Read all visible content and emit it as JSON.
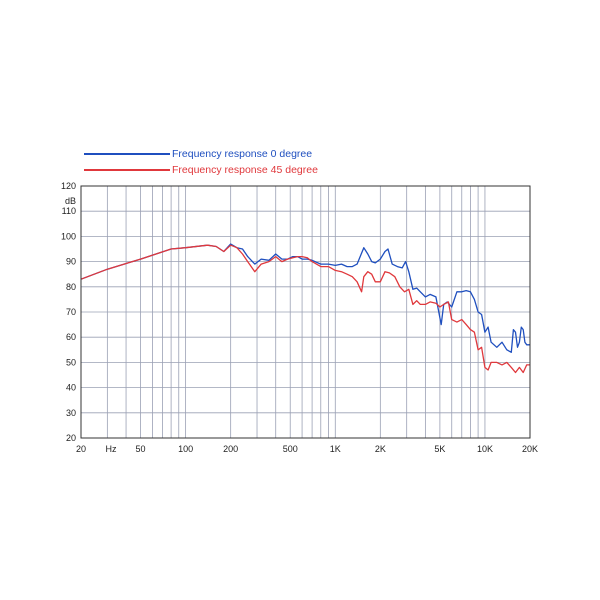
{
  "chart_data": {
    "type": "line",
    "xscale": "log",
    "xlim": [
      20,
      20000
    ],
    "ylim": [
      20,
      120
    ],
    "ylabel": "dB",
    "xunit_label": "Hz",
    "x_tick_labels": [
      {
        "value": 20,
        "label": "20"
      },
      {
        "value": 50,
        "label": "50"
      },
      {
        "value": 100,
        "label": "100"
      },
      {
        "value": 200,
        "label": "200"
      },
      {
        "value": 500,
        "label": "500"
      },
      {
        "value": 1000,
        "label": "1K"
      },
      {
        "value": 2000,
        "label": "2K"
      },
      {
        "value": 5000,
        "label": "5K"
      },
      {
        "value": 10000,
        "label": "10K"
      },
      {
        "value": 20000,
        "label": "20K"
      }
    ],
    "y_ticks": [
      20,
      30,
      40,
      50,
      60,
      70,
      80,
      90,
      100,
      110,
      120
    ],
    "grid": true,
    "legend_position": "top-left",
    "series": [
      {
        "name": "Frequency response 0 degree",
        "color": "#1f4fbf",
        "points": [
          [
            20,
            83
          ],
          [
            30,
            87
          ],
          [
            50,
            91
          ],
          [
            80,
            95
          ],
          [
            100,
            95.5
          ],
          [
            140,
            96.5
          ],
          [
            160,
            96
          ],
          [
            180,
            94
          ],
          [
            200,
            97
          ],
          [
            220,
            95.5
          ],
          [
            240,
            95
          ],
          [
            260,
            92
          ],
          [
            290,
            89
          ],
          [
            320,
            91
          ],
          [
            360,
            90.5
          ],
          [
            400,
            93
          ],
          [
            440,
            91
          ],
          [
            480,
            91
          ],
          [
            520,
            92
          ],
          [
            560,
            92
          ],
          [
            600,
            91
          ],
          [
            650,
            91
          ],
          [
            700,
            90.5
          ],
          [
            800,
            89
          ],
          [
            900,
            89
          ],
          [
            1000,
            88.5
          ],
          [
            1100,
            89
          ],
          [
            1200,
            88
          ],
          [
            1300,
            88
          ],
          [
            1400,
            89
          ],
          [
            1550,
            95.5
          ],
          [
            1650,
            93
          ],
          [
            1750,
            90
          ],
          [
            1850,
            89.5
          ],
          [
            2000,
            91
          ],
          [
            2150,
            94
          ],
          [
            2250,
            95
          ],
          [
            2400,
            89
          ],
          [
            2600,
            88
          ],
          [
            2800,
            87.5
          ],
          [
            2950,
            90
          ],
          [
            3100,
            86
          ],
          [
            3300,
            79
          ],
          [
            3500,
            79.5
          ],
          [
            3700,
            78
          ],
          [
            4000,
            76
          ],
          [
            4300,
            77
          ],
          [
            4700,
            76
          ],
          [
            5100,
            65
          ],
          [
            5300,
            73
          ],
          [
            5600,
            74
          ],
          [
            6000,
            72
          ],
          [
            6500,
            78
          ],
          [
            7000,
            78
          ],
          [
            7500,
            78.5
          ],
          [
            8000,
            78
          ],
          [
            8500,
            75
          ],
          [
            9000,
            70
          ],
          [
            9500,
            69
          ],
          [
            10000,
            62
          ],
          [
            10500,
            64
          ],
          [
            11000,
            58
          ],
          [
            12000,
            56
          ],
          [
            13000,
            58
          ],
          [
            14000,
            55
          ],
          [
            15000,
            54
          ],
          [
            15500,
            63
          ],
          [
            16000,
            62
          ],
          [
            16500,
            56
          ],
          [
            17000,
            58
          ],
          [
            17500,
            64
          ],
          [
            18000,
            63
          ],
          [
            18500,
            58
          ],
          [
            19000,
            57
          ],
          [
            20000,
            57
          ]
        ]
      },
      {
        "name": "Frequency response 45 degree",
        "color": "#e0383c",
        "points": [
          [
            20,
            83
          ],
          [
            30,
            87
          ],
          [
            50,
            91
          ],
          [
            80,
            95
          ],
          [
            100,
            95.5
          ],
          [
            140,
            96.5
          ],
          [
            160,
            96
          ],
          [
            180,
            94
          ],
          [
            200,
            96.5
          ],
          [
            220,
            95.5
          ],
          [
            240,
            93
          ],
          [
            260,
            90
          ],
          [
            290,
            86
          ],
          [
            320,
            89
          ],
          [
            360,
            90
          ],
          [
            400,
            92
          ],
          [
            440,
            90
          ],
          [
            480,
            91
          ],
          [
            520,
            91.5
          ],
          [
            560,
            92
          ],
          [
            600,
            92
          ],
          [
            650,
            91.5
          ],
          [
            700,
            90
          ],
          [
            800,
            88
          ],
          [
            900,
            88
          ],
          [
            1000,
            86.5
          ],
          [
            1100,
            86
          ],
          [
            1200,
            85
          ],
          [
            1300,
            84
          ],
          [
            1400,
            82
          ],
          [
            1500,
            78
          ],
          [
            1550,
            84
          ],
          [
            1650,
            86
          ],
          [
            1750,
            85
          ],
          [
            1850,
            82
          ],
          [
            2000,
            82
          ],
          [
            2150,
            86
          ],
          [
            2300,
            85.5
          ],
          [
            2500,
            84
          ],
          [
            2700,
            80
          ],
          [
            2900,
            78
          ],
          [
            3100,
            79
          ],
          [
            3300,
            73
          ],
          [
            3500,
            74.5
          ],
          [
            3700,
            73
          ],
          [
            4000,
            73
          ],
          [
            4300,
            74
          ],
          [
            4700,
            73.5
          ],
          [
            5000,
            72
          ],
          [
            5300,
            73
          ],
          [
            5700,
            74
          ],
          [
            6000,
            67
          ],
          [
            6500,
            66
          ],
          [
            7000,
            67
          ],
          [
            7500,
            65
          ],
          [
            8000,
            63
          ],
          [
            8500,
            62
          ],
          [
            9000,
            55
          ],
          [
            9500,
            56
          ],
          [
            10000,
            48
          ],
          [
            10500,
            47
          ],
          [
            11000,
            50
          ],
          [
            12000,
            50
          ],
          [
            13000,
            49
          ],
          [
            14000,
            50
          ],
          [
            15000,
            48
          ],
          [
            16000,
            46
          ],
          [
            17000,
            48
          ],
          [
            18000,
            46
          ],
          [
            19000,
            49
          ],
          [
            20000,
            49
          ]
        ]
      }
    ]
  }
}
